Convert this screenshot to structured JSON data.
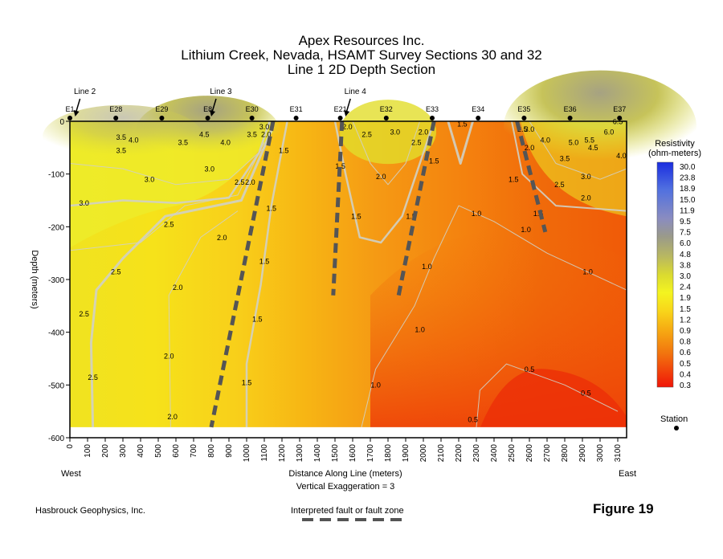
{
  "header": {
    "title_line1": "Apex Resources Inc.",
    "title_line2": "Lithium Creek, Nevada, HSAMT Survey Sections 30 and 32",
    "title_line3": "Line 1 2D Depth Section"
  },
  "chart_data": {
    "type": "heatmap",
    "title": "Line 1 2D Depth Section",
    "xlabel": "Distance Along Line (meters)",
    "ylabel": "Depth (meters)",
    "xlim": [
      0,
      3150
    ],
    "ylim": [
      -600,
      0
    ],
    "x_ticks": [
      0,
      100,
      200,
      300,
      400,
      500,
      600,
      700,
      800,
      900,
      1000,
      1100,
      1200,
      1300,
      1400,
      1500,
      1600,
      1700,
      1800,
      1900,
      2000,
      2100,
      2200,
      2300,
      2400,
      2500,
      2600,
      2700,
      2800,
      2900,
      3000,
      3100
    ],
    "y_ticks": [
      0,
      -100,
      -200,
      -300,
      -400,
      -500,
      -600
    ],
    "west_label": "West",
    "east_label": "East",
    "vertical_exaggeration": "Vertical Exaggeration = 3",
    "stations": [
      {
        "name": "E1",
        "x": 0
      },
      {
        "name": "E28",
        "x": 260
      },
      {
        "name": "E29",
        "x": 520
      },
      {
        "name": "E8",
        "x": 780
      },
      {
        "name": "E30",
        "x": 1030
      },
      {
        "name": "E31",
        "x": 1280
      },
      {
        "name": "E21",
        "x": 1530
      },
      {
        "name": "E32",
        "x": 1790
      },
      {
        "name": "E33",
        "x": 2050
      },
      {
        "name": "E34",
        "x": 2310
      },
      {
        "name": "E35",
        "x": 2570
      },
      {
        "name": "E36",
        "x": 2830
      },
      {
        "name": "E37",
        "x": 3110
      }
    ],
    "crossing_lines": [
      {
        "name": "Line 2",
        "x": 30
      },
      {
        "name": "Line 3",
        "x": 800
      },
      {
        "name": "Line 4",
        "x": 1560
      }
    ],
    "faults": [
      {
        "x": [
          1150,
          800
        ],
        "y": [
          0,
          -580
        ]
      },
      {
        "x": [
          1540,
          1490
        ],
        "y": [
          0,
          -330
        ]
      },
      {
        "x": [
          2060,
          1860
        ],
        "y": [
          0,
          -330
        ]
      },
      {
        "x": [
          2530,
          2690
        ],
        "y": [
          0,
          -210
        ]
      }
    ],
    "color_levels": [
      30.0,
      23.8,
      18.9,
      15.0,
      11.9,
      9.5,
      7.5,
      6.0,
      4.8,
      3.8,
      3.0,
      2.4,
      1.9,
      1.5,
      1.2,
      0.9,
      0.8,
      0.6,
      0.5,
      0.4,
      0.3
    ],
    "colorbar_title_line1": "Resistivity",
    "colorbar_title_line2": "(ohm-meters)",
    "contour_labels": [
      {
        "text": "3.5",
        "x": 290,
        "y": -60
      },
      {
        "text": "4.0",
        "x": 360,
        "y": -40
      },
      {
        "text": "3.5",
        "x": 290,
        "y": -35
      },
      {
        "text": "3.5",
        "x": 640,
        "y": -45
      },
      {
        "text": "4.5",
        "x": 760,
        "y": -30
      },
      {
        "text": "4.0",
        "x": 880,
        "y": -45
      },
      {
        "text": "3.5",
        "x": 1030,
        "y": -30
      },
      {
        "text": "3.0",
        "x": 1100,
        "y": -15
      },
      {
        "text": "3.0",
        "x": 450,
        "y": -115
      },
      {
        "text": "3.0",
        "x": 790,
        "y": -95
      },
      {
        "text": "3.0",
        "x": 80,
        "y": -160
      },
      {
        "text": "2.5",
        "x": 960,
        "y": -120
      },
      {
        "text": "2.5",
        "x": 560,
        "y": -200
      },
      {
        "text": "2.5",
        "x": 260,
        "y": -290
      },
      {
        "text": "2.0",
        "x": 860,
        "y": -225
      },
      {
        "text": "2.0",
        "x": 1020,
        "y": -120
      },
      {
        "text": "2.0",
        "x": 1110,
        "y": -30
      },
      {
        "text": "1.5",
        "x": 1210,
        "y": -60
      },
      {
        "text": "1.5",
        "x": 1140,
        "y": -170
      },
      {
        "text": "1.5",
        "x": 1100,
        "y": -270
      },
      {
        "text": "1.5",
        "x": 1060,
        "y": -380
      },
      {
        "text": "1.5",
        "x": 1000,
        "y": -500
      },
      {
        "text": "2.5",
        "x": 80,
        "y": -370
      },
      {
        "text": "2.5",
        "x": 130,
        "y": -490
      },
      {
        "text": "2.0",
        "x": 610,
        "y": -320
      },
      {
        "text": "2.0",
        "x": 560,
        "y": -450
      },
      {
        "text": "2.0",
        "x": 580,
        "y": -565
      },
      {
        "text": "2.0",
        "x": 1570,
        "y": -15
      },
      {
        "text": "2.5",
        "x": 1680,
        "y": -30
      },
      {
        "text": "3.0",
        "x": 1840,
        "y": -25
      },
      {
        "text": "2.5",
        "x": 1960,
        "y": -45
      },
      {
        "text": "2.0",
        "x": 2000,
        "y": -25
      },
      {
        "text": "2.0",
        "x": 1760,
        "y": -110
      },
      {
        "text": "1.5",
        "x": 1530,
        "y": -90
      },
      {
        "text": "1.5",
        "x": 1620,
        "y": -185
      },
      {
        "text": "1.5",
        "x": 1930,
        "y": -185
      },
      {
        "text": "1.5",
        "x": 2060,
        "y": -80
      },
      {
        "text": "1.5",
        "x": 2220,
        "y": -10
      },
      {
        "text": "1.0",
        "x": 2020,
        "y": -280
      },
      {
        "text": "1.0",
        "x": 1980,
        "y": -400
      },
      {
        "text": "1.0",
        "x": 1730,
        "y": -505
      },
      {
        "text": "1.0",
        "x": 2300,
        "y": -180
      },
      {
        "text": "1.0",
        "x": 2580,
        "y": -210
      },
      {
        "text": "1.0",
        "x": 2930,
        "y": -290
      },
      {
        "text": "0.5",
        "x": 2600,
        "y": -475
      },
      {
        "text": "0.5",
        "x": 2920,
        "y": -520
      },
      {
        "text": "0.5",
        "x": 2280,
        "y": -570
      },
      {
        "text": "2.5",
        "x": 2560,
        "y": -20
      },
      {
        "text": "3.0",
        "x": 2600,
        "y": -20
      },
      {
        "text": "2.0",
        "x": 2600,
        "y": -55
      },
      {
        "text": "1.5",
        "x": 2510,
        "y": -115
      },
      {
        "text": "4.0",
        "x": 2690,
        "y": -40
      },
      {
        "text": "5.0",
        "x": 2850,
        "y": -45
      },
      {
        "text": "5.5",
        "x": 2940,
        "y": -40
      },
      {
        "text": "6.0",
        "x": 3050,
        "y": -25
      },
      {
        "text": "6.5",
        "x": 3100,
        "y": -5
      },
      {
        "text": "4.5",
        "x": 2960,
        "y": -55
      },
      {
        "text": "4.0",
        "x": 3120,
        "y": -70
      },
      {
        "text": "3.5",
        "x": 2800,
        "y": -75
      },
      {
        "text": "3.0",
        "x": 2920,
        "y": -110
      },
      {
        "text": "2.5",
        "x": 2770,
        "y": -125
      },
      {
        "text": "2.0",
        "x": 2920,
        "y": -150
      },
      {
        "text": "1.5",
        "x": 2650,
        "y": -180
      }
    ]
  },
  "legend": {
    "station_label": "Station",
    "fault_label": "Interpreted fault or fault zone"
  },
  "footer": {
    "company": "Hasbrouck Geophysics, Inc.",
    "figure": "Figure 19"
  }
}
